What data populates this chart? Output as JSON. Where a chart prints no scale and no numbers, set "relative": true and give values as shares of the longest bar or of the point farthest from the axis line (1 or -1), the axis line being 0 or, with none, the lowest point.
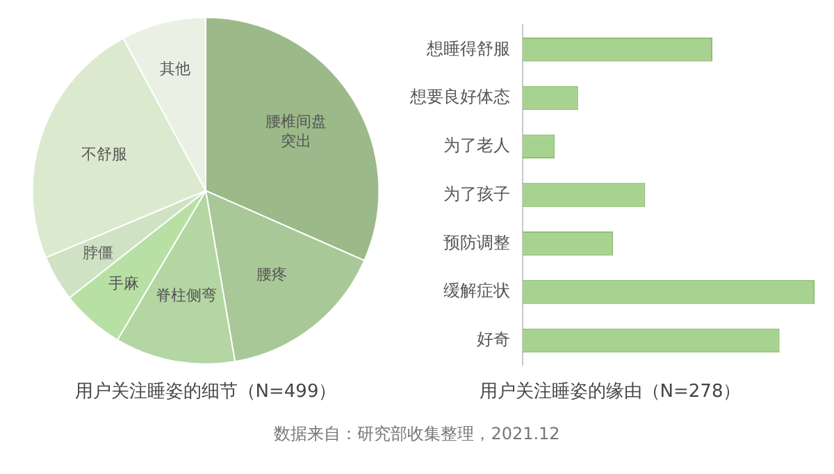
{
  "chart_data": [
    {
      "type": "pie",
      "title": "用户关注睡姿的细节（N=499）",
      "categories": [
        "腰椎间盘突出",
        "腰疼",
        "脊柱侧弯",
        "手麻",
        "脖僵",
        "不舒服",
        "其他"
      ],
      "values": [
        31.6,
        15.7,
        11.2,
        5.9,
        4.3,
        23.4,
        7.9
      ],
      "colors": [
        "#9cb98a",
        "#a9c898",
        "#b3d6a2",
        "#b8e0a5",
        "#cfe3c4",
        "#dbeacf",
        "#eaf1e4"
      ],
      "legend": false,
      "annotations": [
        "数据来自：研究部收集整理，2021.12"
      ]
    },
    {
      "type": "bar",
      "orientation": "horizontal",
      "relative": true,
      "title": "用户关注睡姿的缘由（N=278）",
      "categories": [
        "想睡得舒服",
        "想要良好体态",
        "为了老人",
        "为了孩子",
        "预防调整",
        "缓解症状",
        "好奇"
      ],
      "values": [
        0.65,
        0.19,
        0.11,
        0.42,
        0.31,
        1,
        0.88
      ],
      "color": "#a8d290",
      "legend": false,
      "grid": false
    }
  ]
}
